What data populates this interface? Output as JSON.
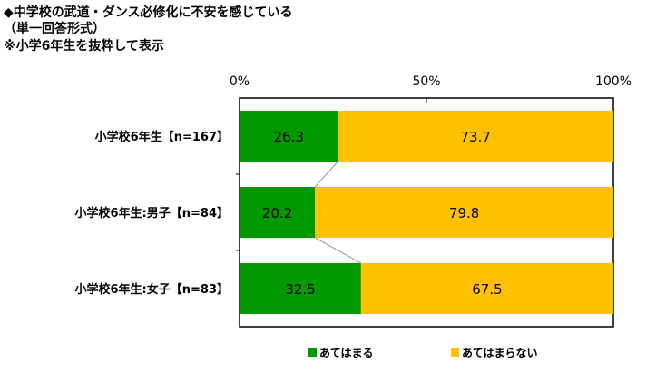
{
  "title_lines": [
    "◆中学校の武道・ダンス必修化に不安を感じている",
    "（単一回答形式）",
    "※小学6年生を抜粋して表示"
  ],
  "chart_data": {
    "type": "bar",
    "stacked": true,
    "orientation": "horizontal",
    "categories": [
      "小学校6年生【n=167】",
      "小学校6年生:男子【n=84】",
      "小学校6年生:女子【n=83】"
    ],
    "series": [
      {
        "name": "あてはまる",
        "values": [
          26.3,
          20.2,
          32.5
        ],
        "color": "#009900"
      },
      {
        "name": "あてはまらない",
        "values": [
          73.7,
          79.8,
          67.5
        ],
        "color": "#FFC000"
      }
    ],
    "xlim": [
      0,
      100
    ],
    "xticks": [
      "0%",
      "50%",
      "100%"
    ],
    "legend": "bottom",
    "grid": false
  }
}
